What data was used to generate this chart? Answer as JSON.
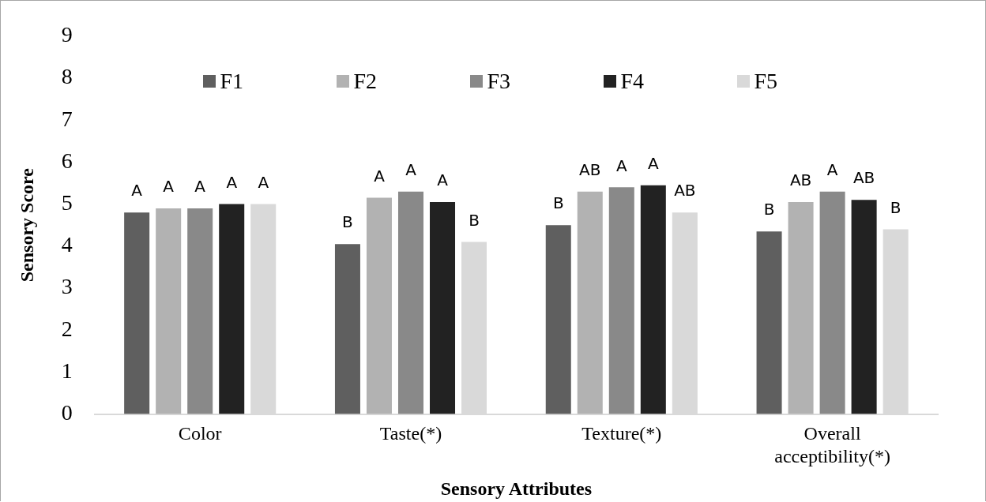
{
  "chart_data": {
    "type": "bar",
    "xlabel": "Sensory Attributes",
    "ylabel": "Sensory Score",
    "categories": [
      "Color",
      "Taste(*)",
      "Texture(*)",
      "Overall acceptibility(*)"
    ],
    "series": [
      {
        "name": "F1",
        "color": "#5f5f5f",
        "values": [
          4.8,
          4.05,
          4.5,
          4.35
        ],
        "value_labels": [
          "A",
          "B",
          "B",
          "B"
        ]
      },
      {
        "name": "F2",
        "color": "#b2b2b2",
        "values": [
          4.9,
          5.15,
          5.3,
          5.05
        ],
        "value_labels": [
          "A",
          "A",
          "AB",
          "AB"
        ]
      },
      {
        "name": "F3",
        "color": "#898989",
        "values": [
          4.9,
          5.3,
          5.4,
          5.3
        ],
        "value_labels": [
          "A",
          "A",
          "A",
          "A"
        ]
      },
      {
        "name": "F4",
        "color": "#222222",
        "values": [
          5.0,
          5.05,
          5.45,
          5.1
        ],
        "value_labels": [
          "A",
          "A",
          "A",
          "AB"
        ]
      },
      {
        "name": "F5",
        "color": "#d9d9d9",
        "values": [
          5.0,
          4.1,
          4.8,
          4.4
        ],
        "value_labels": [
          "A",
          "B",
          "AB",
          "B"
        ]
      }
    ],
    "ylim": [
      0,
      9
    ],
    "yticks": [
      0,
      1,
      2,
      3,
      4,
      5,
      6,
      7,
      8,
      9
    ],
    "grid": false,
    "legend": "top"
  }
}
